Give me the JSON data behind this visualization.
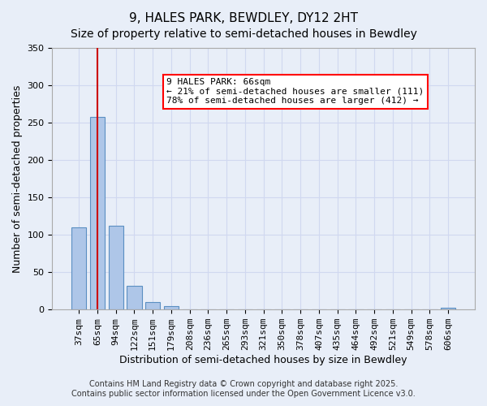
{
  "title": "9, HALES PARK, BEWDLEY, DY12 2HT",
  "subtitle": "Size of property relative to semi-detached houses in Bewdley",
  "xlabel": "Distribution of semi-detached houses by size in Bewdley",
  "ylabel": "Number of semi-detached properties",
  "categories": [
    "37sqm",
    "65sqm",
    "94sqm",
    "122sqm",
    "151sqm",
    "179sqm",
    "208sqm",
    "236sqm",
    "265sqm",
    "293sqm",
    "321sqm",
    "350sqm",
    "378sqm",
    "407sqm",
    "435sqm",
    "464sqm",
    "492sqm",
    "521sqm",
    "549sqm",
    "578sqm",
    "606sqm"
  ],
  "values": [
    110,
    258,
    112,
    32,
    10,
    5,
    0,
    0,
    0,
    0,
    0,
    0,
    0,
    0,
    0,
    0,
    0,
    0,
    0,
    0,
    2
  ],
  "bar_color": "#aec6e8",
  "bar_edge_color": "#5a8fc2",
  "grid_color": "#d0d8f0",
  "background_color": "#e8eef8",
  "annotation_text": "9 HALES PARK: 66sqm\n← 21% of semi-detached houses are smaller (111)\n78% of semi-detached houses are larger (412) →",
  "vline_x": 1,
  "vline_color": "#cc0000",
  "ylim": [
    0,
    350
  ],
  "yticks": [
    0,
    50,
    100,
    150,
    200,
    250,
    300,
    350
  ],
  "footer_line1": "Contains HM Land Registry data © Crown copyright and database right 2025.",
  "footer_line2": "Contains public sector information licensed under the Open Government Licence v3.0.",
  "title_fontsize": 11,
  "subtitle_fontsize": 10,
  "axis_label_fontsize": 9,
  "tick_fontsize": 8,
  "annotation_fontsize": 8,
  "footer_fontsize": 7
}
